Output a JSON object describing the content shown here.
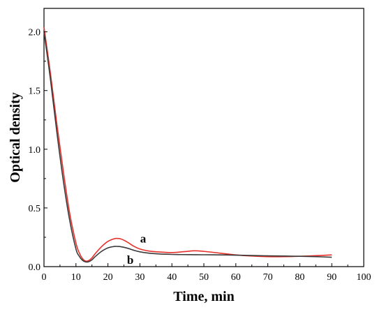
{
  "chart_data": {
    "type": "line",
    "title": "",
    "xlabel": "Time, min",
    "ylabel": "Optical density",
    "xlim": [
      0,
      100
    ],
    "ylim": [
      0.0,
      2.2
    ],
    "x_ticks": [
      0,
      10,
      20,
      30,
      40,
      50,
      60,
      70,
      80,
      90,
      100
    ],
    "x_tick_labels": [
      "0",
      "10",
      "20",
      "30",
      "40",
      "50",
      "60",
      "70",
      "80",
      "90",
      "100"
    ],
    "y_ticks": [
      0.0,
      0.5,
      1.0,
      1.5,
      2.0
    ],
    "y_tick_labels": [
      "0.0",
      "0.5",
      "1.0",
      "1.5",
      "2.0"
    ],
    "grid": false,
    "legend": "none",
    "series": [
      {
        "name": "a",
        "color": "#e8302a",
        "x": [
          0,
          2,
          4,
          6,
          8,
          10,
          11,
          12,
          13,
          14,
          15,
          16,
          18,
          20,
          22,
          23,
          24,
          26,
          28,
          30,
          33,
          36,
          40,
          44,
          47,
          50,
          55,
          60,
          65,
          70,
          75,
          80,
          85,
          90
        ],
        "y": [
          2.04,
          1.65,
          1.22,
          0.82,
          0.46,
          0.2,
          0.12,
          0.07,
          0.048,
          0.052,
          0.075,
          0.11,
          0.17,
          0.215,
          0.238,
          0.24,
          0.236,
          0.21,
          0.175,
          0.15,
          0.132,
          0.125,
          0.12,
          0.128,
          0.135,
          0.13,
          0.115,
          0.1,
          0.09,
          0.085,
          0.085,
          0.088,
          0.093,
          0.1
        ]
      },
      {
        "name": "b",
        "color": "#3a3a3a",
        "x": [
          0,
          2,
          4,
          6,
          8,
          10,
          11,
          12,
          13,
          14,
          15,
          16,
          18,
          20,
          22,
          23,
          24,
          26,
          28,
          30,
          33,
          36,
          40,
          45,
          50,
          55,
          60,
          65,
          70,
          75,
          80,
          85,
          90
        ],
        "y": [
          2.0,
          1.6,
          1.15,
          0.74,
          0.4,
          0.15,
          0.09,
          0.055,
          0.04,
          0.042,
          0.058,
          0.085,
          0.13,
          0.16,
          0.172,
          0.172,
          0.17,
          0.158,
          0.14,
          0.126,
          0.114,
          0.108,
          0.104,
          0.102,
          0.101,
          0.1,
          0.098,
          0.095,
          0.092,
          0.09,
          0.088,
          0.085,
          0.08
        ]
      }
    ],
    "annotations": [
      {
        "text": "a",
        "x": 31,
        "y": 0.24
      },
      {
        "text": "b",
        "x": 27,
        "y": 0.06
      }
    ]
  }
}
